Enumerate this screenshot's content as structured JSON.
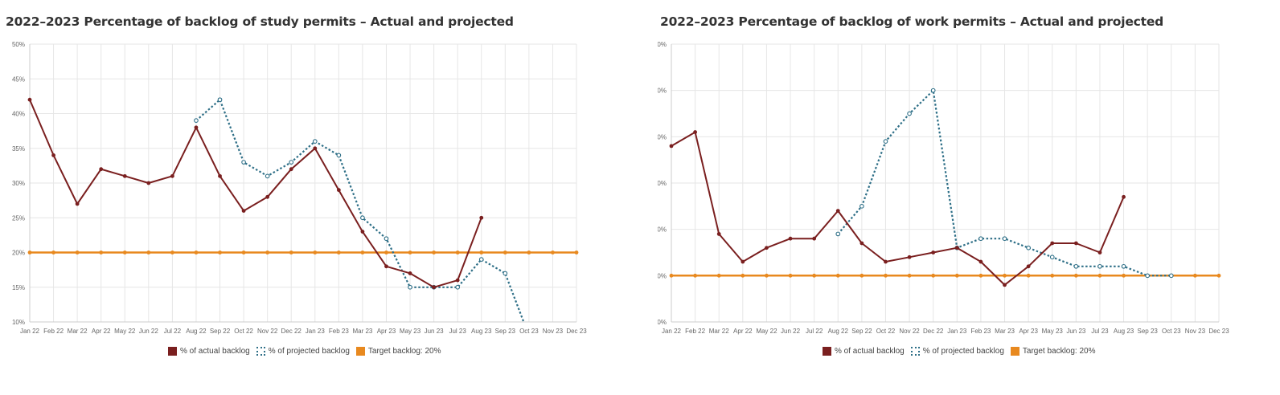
{
  "colors": {
    "actual": "#7a1f1f",
    "projected": "#2e6f87",
    "target": "#e8891f",
    "grid": "#e6e6e6",
    "axis": "#888888"
  },
  "legend": {
    "actual": "% of actual backlog",
    "projected": "% of projected backlog",
    "target": "Target backlog: 20%"
  },
  "chart_data": [
    {
      "type": "line",
      "title": "2022–2023 Percentage of backlog of study permits – Actual and projected",
      "categories": [
        "Jan 22",
        "Feb 22",
        "Mar 22",
        "Apr 22",
        "May 22",
        "Jun 22",
        "Jul 22",
        "Aug 22",
        "Sep 22",
        "Oct 22",
        "Nov 22",
        "Dec 22",
        "Jan 23",
        "Feb 23",
        "Mar 23",
        "Apr 23",
        "May 23",
        "Jun 23",
        "Jul 23",
        "Aug 23",
        "Sep 23",
        "Oct 23",
        "Nov 23",
        "Dec 23"
      ],
      "yticks": [
        "10%",
        "15%",
        "20%",
        "25%",
        "30%",
        "35%",
        "40%",
        "45%",
        "50%"
      ],
      "ylim": [
        10,
        50
      ],
      "grid": true,
      "legend_position": "bottom-center",
      "series": [
        {
          "name": "% of actual backlog",
          "style": "solid",
          "values": [
            42,
            34,
            27,
            32,
            31,
            30,
            31,
            38,
            31,
            26,
            28,
            32,
            35,
            29,
            23,
            18,
            17,
            15,
            16,
            25,
            null,
            null,
            null,
            null
          ]
        },
        {
          "name": "% of projected backlog",
          "style": "dotted",
          "values": [
            null,
            null,
            null,
            null,
            null,
            null,
            null,
            39,
            42,
            33,
            31,
            33,
            36,
            34,
            25,
            22,
            15,
            15,
            15,
            19,
            17,
            8,
            null,
            null
          ]
        },
        {
          "name": "Target backlog: 20%",
          "style": "solid",
          "values": [
            20,
            20,
            20,
            20,
            20,
            20,
            20,
            20,
            20,
            20,
            20,
            20,
            20,
            20,
            20,
            20,
            20,
            20,
            20,
            20,
            20,
            20,
            20,
            20
          ]
        }
      ]
    },
    {
      "type": "line",
      "title": "2022–2023 Percentage of backlog of work permits – Actual and projected",
      "categories": [
        "Jan 22",
        "Feb 22",
        "Mar 22",
        "Apr 22",
        "May 22",
        "Jun 22",
        "Jul 22",
        "Aug 22",
        "Sep 22",
        "Oct 22",
        "Nov 22",
        "Dec 22",
        "Jan 23",
        "Feb 23",
        "Mar 23",
        "Apr 23",
        "May 23",
        "Jun 23",
        "Jul 23",
        "Aug 23",
        "Sep 23",
        "Oct 23",
        "Nov 23",
        "Dec 23"
      ],
      "yticks": [
        "10%",
        "20%",
        "30%",
        "40%",
        "50%",
        "60%",
        "70%"
      ],
      "ylim": [
        10,
        70
      ],
      "grid": true,
      "legend_position": "bottom-center",
      "series": [
        {
          "name": "% of actual backlog",
          "style": "solid",
          "values": [
            48,
            51,
            29,
            23,
            26,
            28,
            28,
            34,
            27,
            23,
            24,
            25,
            26,
            23,
            18,
            22,
            27,
            27,
            25,
            37,
            null,
            null,
            null,
            null
          ]
        },
        {
          "name": "% of projected backlog",
          "style": "dotted",
          "values": [
            null,
            null,
            null,
            null,
            null,
            null,
            null,
            29,
            35,
            49,
            55,
            60,
            26,
            28,
            28,
            26,
            24,
            22,
            22,
            22,
            20,
            20,
            null,
            null
          ]
        },
        {
          "name": "Target backlog: 20%",
          "style": "solid",
          "values": [
            20,
            20,
            20,
            20,
            20,
            20,
            20,
            20,
            20,
            20,
            20,
            20,
            20,
            20,
            20,
            20,
            20,
            20,
            20,
            20,
            20,
            20,
            20,
            20
          ]
        }
      ]
    }
  ]
}
